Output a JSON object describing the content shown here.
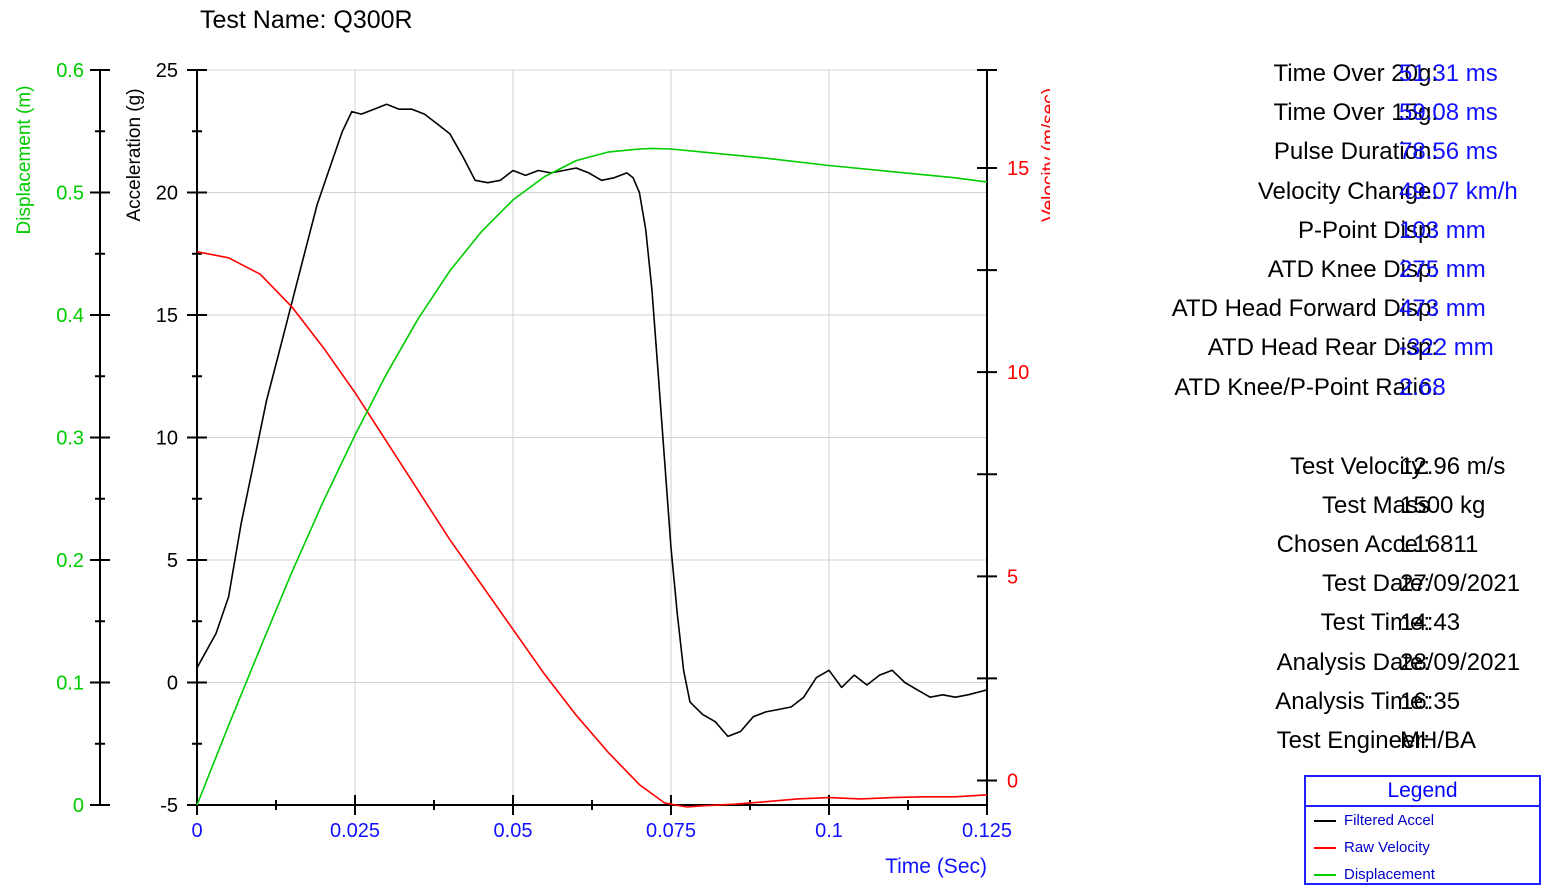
{
  "test_name": "Test Name: Q300R",
  "results": [
    {
      "label": "Time Over 20g:",
      "value": "51.31 ms"
    },
    {
      "label": "Time Over 15g:",
      "value": "59.08 ms"
    },
    {
      "label": "Pulse Duration:",
      "value": "78.56 ms"
    },
    {
      "label": "Velocity Change:",
      "value": "49.07 km/h"
    },
    {
      "label": "P-Point Disp:",
      "value": "103 mm"
    },
    {
      "label": "ATD Knee Disp:",
      "value": "275 mm"
    },
    {
      "label": "ATD Head Forward Disp:",
      "value": "473 mm"
    },
    {
      "label": "ATD Head Rear Disp:",
      "value": "-322 mm"
    },
    {
      "label": "ATD Knee/P-Point Ratio:",
      "value": "2.68"
    }
  ],
  "info": [
    {
      "label": "Test Velocity:",
      "value": "12.96 m/s"
    },
    {
      "label": "Test Mass",
      "value": "1500 kg"
    },
    {
      "label": "Chosen Accel:",
      "value": "L16811"
    },
    {
      "label": "Test Date:",
      "value": "27/09/2021"
    },
    {
      "label": "Test Time:",
      "value": "14:43"
    },
    {
      "label": "Analysis Date:",
      "value": "28/09/2021"
    },
    {
      "label": "Analysis Time:",
      "value": "16:35"
    },
    {
      "label": "Test Engineer:",
      "value": "MH/BA"
    }
  ],
  "legend": {
    "title": "Legend",
    "items": [
      {
        "label": "Filtered Accel",
        "color": "#000000"
      },
      {
        "label": "Raw Velocity",
        "color": "#ff0000"
      },
      {
        "label": "Displacement",
        "color": "#00cc00"
      }
    ]
  },
  "chart_data": {
    "type": "line",
    "xlabel": "Time (Sec)",
    "xlim": [
      0,
      0.125
    ],
    "x_ticks": [
      "0",
      "0.025",
      "0.05",
      "0.075",
      "0.1",
      "0.125"
    ],
    "grid": true,
    "axes": {
      "displacement": {
        "label": "Displacement (m)",
        "lim": [
          0,
          0.6
        ],
        "ticks": [
          "0",
          "0.1",
          "0.2",
          "0.3",
          "0.4",
          "0.5",
          "0.6"
        ],
        "color": "#00cc00"
      },
      "acceleration": {
        "label": "Acceleration (g)",
        "lim": [
          -5,
          25
        ],
        "ticks": [
          "-5",
          "0",
          "5",
          "10",
          "15",
          "20",
          "25"
        ],
        "color": "#000000"
      },
      "velocity": {
        "label": "Velocity (m/sec)",
        "lim": [
          -0.6,
          17.4
        ],
        "ticks": [
          "0",
          "5",
          "10",
          "15"
        ],
        "tick_values": [
          0,
          5,
          10,
          15
        ],
        "color": "#ff0000"
      }
    },
    "series": [
      {
        "name": "Filtered Accel",
        "axis": "acceleration",
        "color": "#000000",
        "points": [
          [
            0,
            0.6
          ],
          [
            0.003,
            2.0
          ],
          [
            0.005,
            3.5
          ],
          [
            0.007,
            6.5
          ],
          [
            0.009,
            9.0
          ],
          [
            0.011,
            11.5
          ],
          [
            0.013,
            13.5
          ],
          [
            0.015,
            15.5
          ],
          [
            0.017,
            17.5
          ],
          [
            0.019,
            19.5
          ],
          [
            0.021,
            21.0
          ],
          [
            0.023,
            22.5
          ],
          [
            0.0245,
            23.3
          ],
          [
            0.026,
            23.2
          ],
          [
            0.028,
            23.4
          ],
          [
            0.03,
            23.6
          ],
          [
            0.032,
            23.4
          ],
          [
            0.034,
            23.4
          ],
          [
            0.036,
            23.2
          ],
          [
            0.038,
            22.8
          ],
          [
            0.04,
            22.4
          ],
          [
            0.042,
            21.5
          ],
          [
            0.044,
            20.5
          ],
          [
            0.046,
            20.4
          ],
          [
            0.048,
            20.5
          ],
          [
            0.05,
            20.9
          ],
          [
            0.052,
            20.7
          ],
          [
            0.054,
            20.9
          ],
          [
            0.056,
            20.8
          ],
          [
            0.058,
            20.9
          ],
          [
            0.06,
            21.0
          ],
          [
            0.062,
            20.8
          ],
          [
            0.064,
            20.5
          ],
          [
            0.066,
            20.6
          ],
          [
            0.068,
            20.8
          ],
          [
            0.069,
            20.6
          ],
          [
            0.07,
            20.0
          ],
          [
            0.071,
            18.5
          ],
          [
            0.072,
            16.0
          ],
          [
            0.073,
            12.5
          ],
          [
            0.074,
            9.0
          ],
          [
            0.075,
            5.5
          ],
          [
            0.076,
            2.8
          ],
          [
            0.077,
            0.5
          ],
          [
            0.078,
            -0.8
          ],
          [
            0.08,
            -1.3
          ],
          [
            0.082,
            -1.6
          ],
          [
            0.084,
            -2.2
          ],
          [
            0.086,
            -2.0
          ],
          [
            0.088,
            -1.4
          ],
          [
            0.09,
            -1.2
          ],
          [
            0.092,
            -1.1
          ],
          [
            0.094,
            -1.0
          ],
          [
            0.096,
            -0.6
          ],
          [
            0.098,
            0.2
          ],
          [
            0.1,
            0.5
          ],
          [
            0.102,
            -0.2
          ],
          [
            0.104,
            0.3
          ],
          [
            0.106,
            -0.1
          ],
          [
            0.108,
            0.3
          ],
          [
            0.11,
            0.5
          ],
          [
            0.112,
            0.0
          ],
          [
            0.114,
            -0.3
          ],
          [
            0.116,
            -0.6
          ],
          [
            0.118,
            -0.5
          ],
          [
            0.12,
            -0.6
          ],
          [
            0.122,
            -0.5
          ],
          [
            0.125,
            -0.3
          ]
        ]
      },
      {
        "name": "Raw Velocity",
        "axis": "velocity",
        "color": "#ff0000",
        "points": [
          [
            0,
            12.95
          ],
          [
            0.005,
            12.8
          ],
          [
            0.01,
            12.4
          ],
          [
            0.015,
            11.6
          ],
          [
            0.02,
            10.6
          ],
          [
            0.025,
            9.5
          ],
          [
            0.03,
            8.3
          ],
          [
            0.035,
            7.1
          ],
          [
            0.04,
            5.9
          ],
          [
            0.045,
            4.8
          ],
          [
            0.05,
            3.7
          ],
          [
            0.055,
            2.6
          ],
          [
            0.06,
            1.6
          ],
          [
            0.065,
            0.7
          ],
          [
            0.07,
            -0.1
          ],
          [
            0.074,
            -0.55
          ],
          [
            0.0775,
            -0.65
          ],
          [
            0.08,
            -0.62
          ],
          [
            0.085,
            -0.58
          ],
          [
            0.09,
            -0.52
          ],
          [
            0.095,
            -0.45
          ],
          [
            0.1,
            -0.42
          ],
          [
            0.105,
            -0.45
          ],
          [
            0.11,
            -0.42
          ],
          [
            0.115,
            -0.4
          ],
          [
            0.12,
            -0.4
          ],
          [
            0.125,
            -0.35
          ]
        ]
      },
      {
        "name": "Displacement",
        "axis": "displacement",
        "color": "#00cc00",
        "points": [
          [
            0,
            0.0
          ],
          [
            0.005,
            0.065
          ],
          [
            0.01,
            0.128
          ],
          [
            0.015,
            0.19
          ],
          [
            0.02,
            0.248
          ],
          [
            0.025,
            0.302
          ],
          [
            0.03,
            0.352
          ],
          [
            0.035,
            0.397
          ],
          [
            0.04,
            0.436
          ],
          [
            0.045,
            0.468
          ],
          [
            0.05,
            0.494
          ],
          [
            0.055,
            0.513
          ],
          [
            0.06,
            0.526
          ],
          [
            0.065,
            0.533
          ],
          [
            0.07,
            0.5355
          ],
          [
            0.072,
            0.536
          ],
          [
            0.075,
            0.5355
          ],
          [
            0.08,
            0.533
          ],
          [
            0.09,
            0.528
          ],
          [
            0.1,
            0.522
          ],
          [
            0.11,
            0.517
          ],
          [
            0.12,
            0.512
          ],
          [
            0.125,
            0.5085
          ]
        ]
      }
    ]
  }
}
